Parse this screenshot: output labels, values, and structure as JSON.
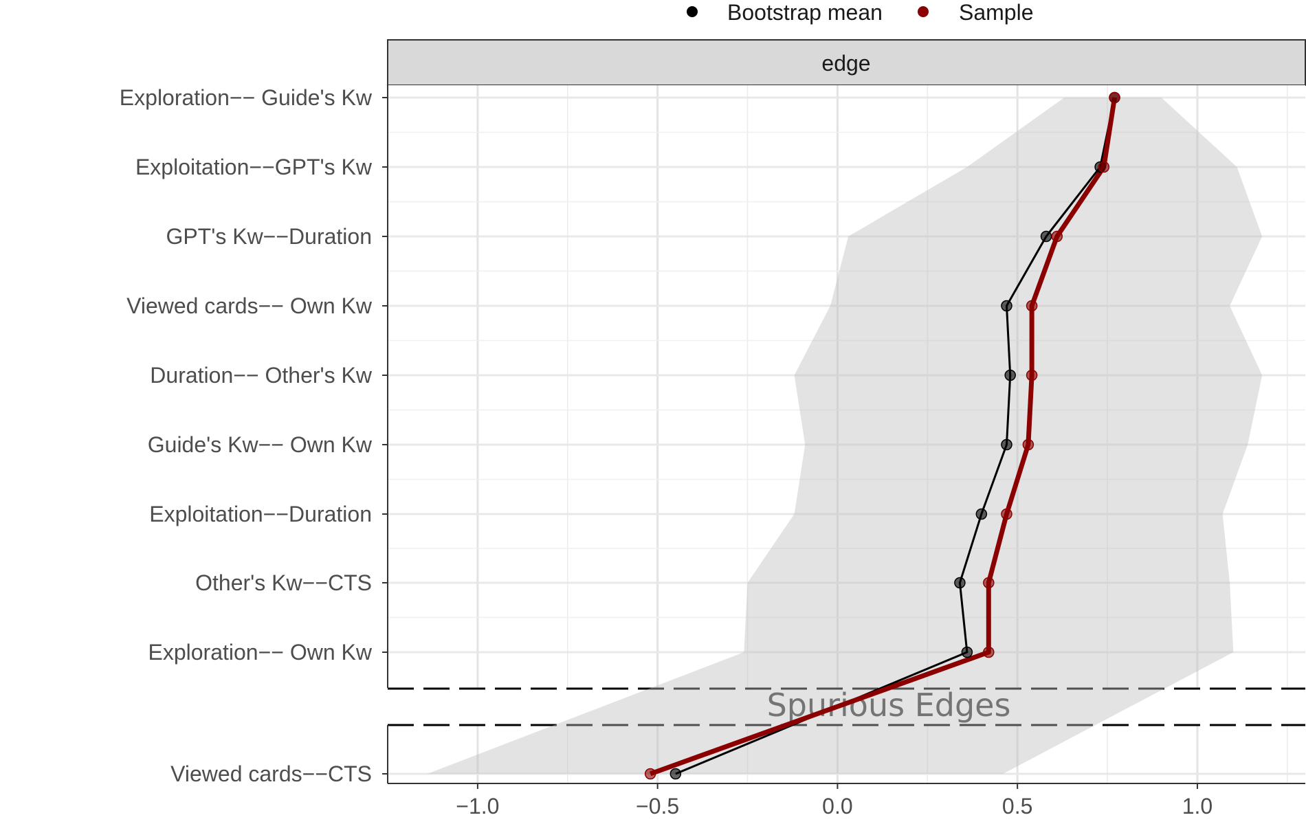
{
  "chart_data": {
    "type": "line",
    "strip_label": "edge",
    "separator_label": "Spurious Edges",
    "legend": {
      "position": "top",
      "items": [
        {
          "label": "Bootstrap mean",
          "color": "#000000"
        },
        {
          "label": "Sample",
          "color": "#8b0000"
        }
      ]
    },
    "xlim": [
      -1.25,
      1.3
    ],
    "x_ticks": [
      -1.0,
      -0.5,
      0.0,
      0.5,
      1.0
    ],
    "x_tick_labels": [
      "−1.0",
      "−0.5",
      "0.0",
      "0.5",
      "1.0"
    ],
    "grid": true,
    "categories": [
      "Exploration−− Guide's Kw",
      "Exploitation−−GPT's Kw",
      "GPT's Kw−−Duration",
      "Viewed cards−−  Own Kw",
      "Duration−− Other's Kw",
      "Guide's Kw−−  Own Kw",
      "Exploitation−−Duration",
      "Other's Kw−−CTS",
      "Exploration−−  Own Kw",
      "Viewed cards−−CTS"
    ],
    "series": [
      {
        "name": "Bootstrap mean",
        "color": "#000000",
        "values": [
          0.77,
          0.73,
          0.58,
          0.47,
          0.48,
          0.47,
          0.4,
          0.34,
          0.36,
          -0.45
        ]
      },
      {
        "name": "Sample",
        "color": "#8b0000",
        "values": [
          0.77,
          0.74,
          0.61,
          0.54,
          0.54,
          0.53,
          0.47,
          0.42,
          0.42,
          -0.52
        ]
      }
    ],
    "ci_band": {
      "lower": [
        0.63,
        0.36,
        0.03,
        -0.02,
        -0.12,
        -0.09,
        -0.12,
        -0.25,
        -0.26,
        -1.14
      ],
      "upper": [
        0.9,
        1.11,
        1.18,
        1.09,
        1.18,
        1.14,
        1.07,
        1.09,
        1.1,
        0.46
      ]
    }
  }
}
